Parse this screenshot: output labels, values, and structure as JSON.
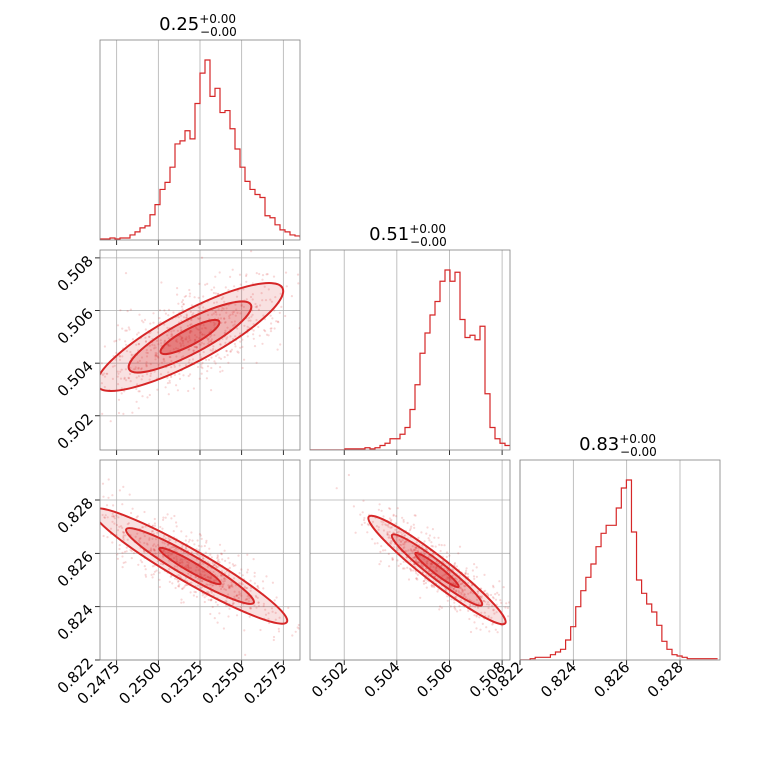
{
  "chart_data": {
    "type": "corner",
    "color": "#d62728",
    "parameters": [
      {
        "id": "p0",
        "range": [
          0.2465,
          0.2585
        ],
        "ticks": [
          0.2475,
          0.25,
          0.2525,
          0.255,
          0.2575
        ],
        "tick_labels": [
          "0.2475",
          "0.2500",
          "0.2525",
          "0.2550",
          "0.2575"
        ],
        "title_value": "0.25",
        "title_plus": "+0.00",
        "title_minus": "−0.00"
      },
      {
        "id": "p1",
        "range": [
          0.5007,
          0.5083
        ],
        "ticks": [
          0.502,
          0.504,
          0.506,
          0.508
        ],
        "tick_labels": [
          "0.502",
          "0.504",
          "0.506",
          "0.508"
        ],
        "title_value": "0.51",
        "title_plus": "+0.00",
        "title_minus": "−0.00"
      },
      {
        "id": "p2",
        "range": [
          0.822,
          0.8295
        ],
        "ticks": [
          0.822,
          0.824,
          0.826,
          0.828
        ],
        "tick_labels": [
          "0.822",
          "0.824",
          "0.826",
          "0.828"
        ],
        "title_value": "0.83",
        "title_plus": "+0.00",
        "title_minus": "−0.00"
      }
    ],
    "histograms": [
      {
        "param": "p0",
        "bins_start": 0.2465,
        "bin_width": 0.0003,
        "counts": [
          1,
          1,
          2,
          1,
          2,
          2,
          5,
          8,
          12,
          14,
          25,
          35,
          50,
          57,
          72,
          95,
          98,
          108,
          100,
          135,
          165,
          178,
          142,
          150,
          126,
          128,
          110,
          90,
          72,
          58,
          50,
          45,
          42,
          24,
          22,
          15,
          10,
          8,
          5,
          4,
          3,
          3,
          2,
          1
        ]
      },
      {
        "param": "p1",
        "bins_start": 0.5007,
        "bin_width": 0.00019,
        "counts": [
          0,
          0,
          0,
          0,
          0,
          0,
          0,
          1,
          1,
          1,
          1,
          2,
          1,
          2,
          4,
          6,
          10,
          10,
          14,
          20,
          36,
          58,
          86,
          104,
          120,
          132,
          150,
          160,
          150,
          158,
          116,
          100,
          102,
          98,
          110,
          50,
          20,
          10,
          6,
          4
        ]
      },
      {
        "param": "p2",
        "bins_start": 0.822,
        "bin_width": 0.00019,
        "counts": [
          0,
          0,
          1,
          2,
          2,
          2,
          4,
          6,
          8,
          15,
          25,
          40,
          52,
          62,
          72,
          85,
          95,
          101,
          101,
          114,
          129,
          135,
          96,
          60,
          50,
          42,
          36,
          26,
          14,
          8,
          4,
          3,
          2,
          1,
          1,
          1,
          1,
          1,
          1
        ]
      }
    ],
    "pairs": [
      {
        "x": "p0",
        "y": "p1",
        "contour_levels": [
          0.39,
          0.86,
          0.99
        ],
        "sample_count_shown": 700
      },
      {
        "x": "p0",
        "y": "p2",
        "contour_levels": [
          0.39,
          0.86,
          0.99
        ],
        "sample_count_shown": 700
      },
      {
        "x": "p1",
        "y": "p2",
        "contour_levels": [
          0.39,
          0.86,
          0.99
        ],
        "sample_count_shown": 700
      }
    ],
    "grid": true
  }
}
